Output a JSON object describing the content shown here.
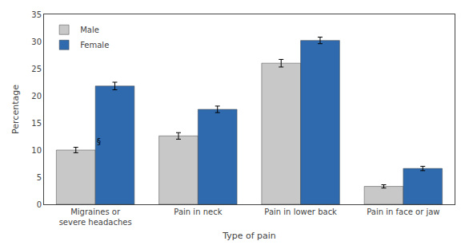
{
  "chart_data": {
    "type": "bar",
    "categories": [
      "Migraines or\nsevere headaches",
      "Pain in neck",
      "Pain in lower back",
      "Pain in face or jaw"
    ],
    "series": [
      {
        "name": "Male",
        "color": "#c8c8c8",
        "values": [
          10.0,
          12.6,
          26.0,
          3.3
        ],
        "errors": [
          0.5,
          0.6,
          0.7,
          0.3
        ]
      },
      {
        "name": "Female",
        "color": "#2e6aad",
        "values": [
          21.8,
          17.5,
          30.2,
          6.6
        ],
        "errors": [
          0.7,
          0.6,
          0.6,
          0.4
        ]
      }
    ],
    "xlabel": "Type of pain",
    "ylabel": "Percentage",
    "ylim": [
      0,
      35
    ],
    "yticks": [
      0,
      5,
      10,
      15,
      20,
      25,
      30,
      35
    ],
    "grid": false,
    "legend": "upper left",
    "annotations": [
      {
        "text": "§",
        "x": "Migraines or\nsevere headaches",
        "y": 10.5
      }
    ]
  }
}
